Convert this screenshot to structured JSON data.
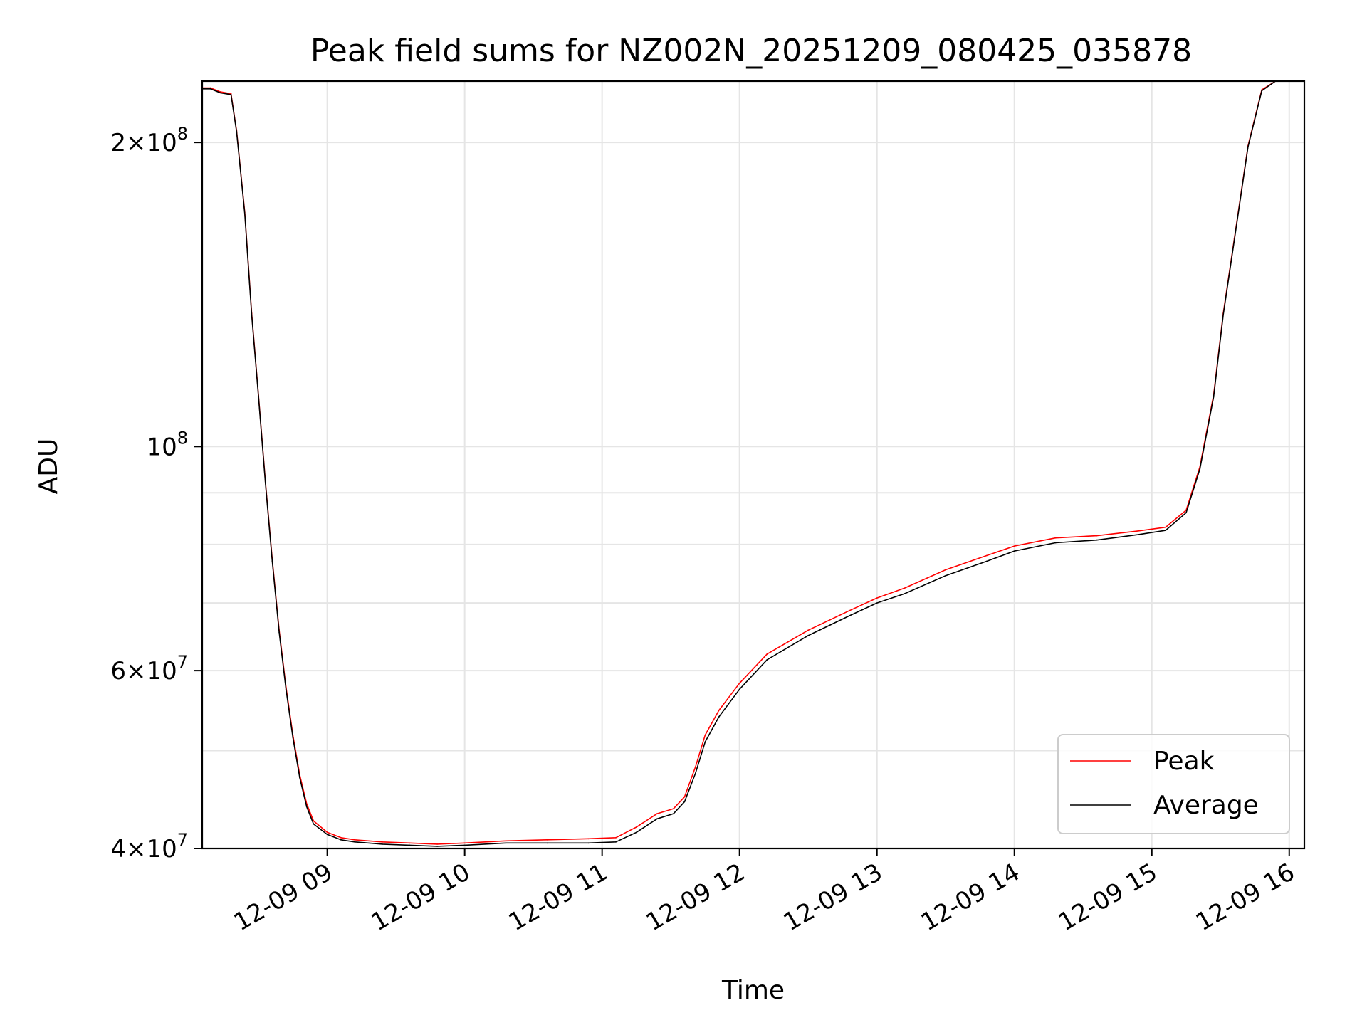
{
  "chart_data": {
    "type": "line",
    "title": "Peak field sums for NZ002N_20251209_080425_035878",
    "xlabel": "Time",
    "ylabel": "ADU",
    "yscale": "log",
    "ylim": [
      40000000,
      230000000
    ],
    "xlim": [
      8.09,
      16.11
    ],
    "grid": true,
    "legend_position": "lower-right",
    "x_ticks": [
      {
        "value": 9,
        "label": "12-09 09"
      },
      {
        "value": 10,
        "label": "12-09 10"
      },
      {
        "value": 11,
        "label": "12-09 11"
      },
      {
        "value": 12,
        "label": "12-09 12"
      },
      {
        "value": 13,
        "label": "12-09 13"
      },
      {
        "value": 14,
        "label": "12-09 14"
      },
      {
        "value": 15,
        "label": "12-09 15"
      },
      {
        "value": 16,
        "label": "12-09 16"
      }
    ],
    "y_major_ticks": [
      {
        "value": 40000000,
        "mantissa": "4",
        "exponent": "7"
      },
      {
        "value": 60000000,
        "mantissa": "6",
        "exponent": "7"
      },
      {
        "value": 100000000,
        "mantissa": "",
        "exponent": "8"
      },
      {
        "value": 200000000,
        "mantissa": "2",
        "exponent": "8"
      }
    ],
    "y_minor_grid": [
      50000000,
      70000000,
      80000000,
      90000000
    ],
    "series": [
      {
        "name": "Average",
        "color": "#000000",
        "x": [
          8.09,
          8.15,
          8.22,
          8.3,
          8.34,
          8.4,
          8.45,
          8.5,
          8.55,
          8.6,
          8.65,
          8.7,
          8.75,
          8.8,
          8.85,
          8.9,
          9.0,
          9.1,
          9.2,
          9.4,
          9.6,
          9.8,
          10.0,
          10.3,
          10.6,
          10.9,
          11.1,
          11.25,
          11.4,
          11.52,
          11.6,
          11.68,
          11.75,
          11.85,
          12.0,
          12.2,
          12.5,
          12.8,
          13.0,
          13.2,
          13.5,
          13.8,
          14.0,
          14.3,
          14.6,
          14.9,
          15.1,
          15.25,
          15.35,
          15.45,
          15.52,
          15.6,
          15.7,
          15.8,
          15.9
        ],
        "values": [
          226000000,
          226000000,
          224000000,
          223000000,
          205000000,
          170000000,
          135000000,
          112000000,
          92000000,
          77000000,
          65500000,
          57500000,
          51500000,
          47000000,
          44000000,
          42300000,
          41300000,
          40800000,
          40600000,
          40400000,
          40300000,
          40200000,
          40300000,
          40500000,
          40500000,
          40500000,
          40600000,
          41500000,
          42800000,
          43300000,
          44500000,
          47500000,
          51000000,
          54000000,
          57500000,
          61500000,
          65000000,
          68000000,
          70000000,
          71500000,
          74500000,
          77000000,
          78800000,
          80300000,
          80800000,
          81800000,
          82600000,
          86000000,
          95000000,
          112000000,
          135000000,
          160000000,
          198000000,
          225000000,
          232000000
        ]
      },
      {
        "name": "Peak",
        "color": "#ff0000",
        "x": [
          8.09,
          8.15,
          8.22,
          8.3,
          8.34,
          8.4,
          8.45,
          8.5,
          8.55,
          8.6,
          8.65,
          8.7,
          8.75,
          8.8,
          8.85,
          8.9,
          9.0,
          9.1,
          9.2,
          9.4,
          9.6,
          9.8,
          10.0,
          10.3,
          10.6,
          10.9,
          11.1,
          11.25,
          11.4,
          11.52,
          11.6,
          11.68,
          11.75,
          11.85,
          12.0,
          12.2,
          12.5,
          12.8,
          13.0,
          13.2,
          13.5,
          13.8,
          14.0,
          14.3,
          14.6,
          14.9,
          15.1,
          15.25,
          15.35,
          15.45,
          15.52,
          15.6,
          15.7,
          15.8,
          15.9
        ],
        "values": [
          226500000,
          226500000,
          224500000,
          223500000,
          205500000,
          170500000,
          135500000,
          112300000,
          92300000,
          77300000,
          65800000,
          57800000,
          51800000,
          47300000,
          44300000,
          42600000,
          41500000,
          41000000,
          40800000,
          40600000,
          40500000,
          40400000,
          40500000,
          40700000,
          40800000,
          40900000,
          41000000,
          42000000,
          43300000,
          43800000,
          45000000,
          48200000,
          51800000,
          54800000,
          58300000,
          62300000,
          65800000,
          68800000,
          70800000,
          72400000,
          75500000,
          78000000,
          79700000,
          81200000,
          81600000,
          82500000,
          83200000,
          86500000,
          95500000,
          112500000,
          135500000,
          160500000,
          198500000,
          225500000,
          232500000
        ]
      }
    ]
  }
}
